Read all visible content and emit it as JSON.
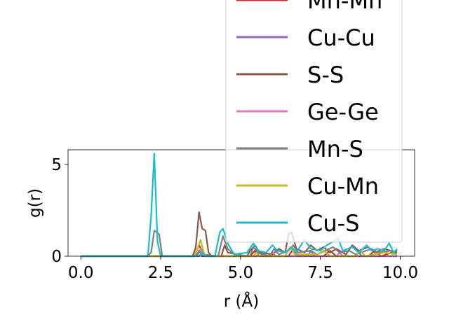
{
  "chart_data": {
    "type": "line",
    "xlabel": "r (Å)",
    "ylabel": "g(r)",
    "xlim": [
      -0.4,
      10.45
    ],
    "ylim": [
      0,
      5.8
    ],
    "x_ticks": [
      0.0,
      2.5,
      5.0,
      7.5,
      10.0
    ],
    "x_tick_labels": [
      "0.0",
      "2.5",
      "5.0",
      "7.5",
      "10.0"
    ],
    "y_ticks": [
      0,
      5
    ],
    "y_tick_labels": [
      "0",
      "5"
    ],
    "legend_position": "upper-right, overflowing the top of the axes",
    "series": [
      {
        "name": "Mn-Mn",
        "color": "#d62728",
        "points": [
          [
            0,
            0
          ],
          [
            3.55,
            0
          ],
          [
            3.7,
            0.6
          ],
          [
            3.85,
            0.1
          ],
          [
            4.0,
            0
          ],
          [
            5.3,
            0
          ],
          [
            5.45,
            0.3
          ],
          [
            5.6,
            0
          ],
          [
            6.5,
            0
          ],
          [
            6.65,
            0.4
          ],
          [
            6.8,
            0
          ],
          [
            7.6,
            0
          ],
          [
            7.8,
            0.3
          ],
          [
            8.0,
            0
          ],
          [
            9.0,
            0
          ],
          [
            9.2,
            0.3
          ],
          [
            9.4,
            0
          ],
          [
            9.9,
            0.3
          ]
        ]
      },
      {
        "name": "Cu-Cu",
        "color": "#9467bd",
        "points": [
          [
            0,
            0
          ],
          [
            3.6,
            0
          ],
          [
            3.7,
            0.3
          ],
          [
            3.8,
            0
          ],
          [
            5.5,
            0
          ],
          [
            5.6,
            0.2
          ],
          [
            5.7,
            0
          ],
          [
            7.1,
            0
          ],
          [
            7.2,
            0.3
          ],
          [
            7.3,
            0
          ],
          [
            8.6,
            0
          ],
          [
            8.7,
            0.2
          ],
          [
            8.8,
            0
          ],
          [
            9.9,
            0
          ]
        ]
      },
      {
        "name": "S-S",
        "color": "#8c564b",
        "points": [
          [
            0,
            0
          ],
          [
            3.5,
            0
          ],
          [
            3.6,
            0.5
          ],
          [
            3.7,
            2.4
          ],
          [
            3.8,
            1.5
          ],
          [
            3.9,
            1.4
          ],
          [
            4.0,
            0.2
          ],
          [
            4.1,
            0
          ],
          [
            4.4,
            0
          ],
          [
            4.5,
            0.6
          ],
          [
            4.6,
            0.2
          ],
          [
            5.2,
            0
          ],
          [
            5.3,
            0.3
          ],
          [
            5.45,
            0.6
          ],
          [
            5.6,
            0.2
          ],
          [
            6.0,
            0.1
          ],
          [
            6.2,
            0.4
          ],
          [
            6.4,
            0.2
          ],
          [
            6.5,
            1.2
          ],
          [
            6.6,
            1.3
          ],
          [
            6.75,
            0.4
          ],
          [
            7.0,
            0.2
          ],
          [
            7.2,
            0.6
          ],
          [
            7.4,
            0.3
          ],
          [
            7.6,
            0.5
          ],
          [
            7.8,
            0.2
          ],
          [
            8.0,
            0.4
          ],
          [
            8.3,
            0.1
          ],
          [
            8.5,
            0.6
          ],
          [
            8.7,
            0.3
          ],
          [
            9.0,
            0.5
          ],
          [
            9.2,
            0.2
          ],
          [
            9.5,
            0.4
          ],
          [
            9.7,
            0.3
          ],
          [
            9.9,
            0.2
          ]
        ]
      },
      {
        "name": "Ge-Ge",
        "color": "#e377c2",
        "points": [
          [
            0,
            0
          ],
          [
            3.65,
            0
          ],
          [
            3.75,
            0.4
          ],
          [
            3.85,
            0
          ],
          [
            5.9,
            0
          ],
          [
            6.0,
            0.2
          ],
          [
            6.1,
            0
          ],
          [
            8.0,
            0
          ],
          [
            8.1,
            0.2
          ],
          [
            8.2,
            0
          ],
          [
            9.9,
            0
          ]
        ]
      },
      {
        "name": "Mn-S",
        "color": "#7f7f7f",
        "points": [
          [
            0,
            0
          ],
          [
            2.1,
            0
          ],
          [
            2.2,
            0.2
          ],
          [
            2.3,
            1.4
          ],
          [
            2.45,
            1.2
          ],
          [
            2.55,
            0
          ],
          [
            3.6,
            0
          ],
          [
            3.7,
            0.3
          ],
          [
            3.8,
            0.1
          ],
          [
            4.3,
            0
          ],
          [
            4.45,
            1.1
          ],
          [
            4.6,
            0.4
          ],
          [
            4.8,
            0.1
          ],
          [
            5.3,
            0
          ],
          [
            5.4,
            0.5
          ],
          [
            5.55,
            0.2
          ],
          [
            5.9,
            0
          ],
          [
            6.05,
            0.4
          ],
          [
            6.2,
            0.1
          ],
          [
            6.5,
            0.3
          ],
          [
            6.65,
            0.6
          ],
          [
            6.8,
            0.2
          ],
          [
            7.2,
            0.3
          ],
          [
            7.4,
            0.1
          ],
          [
            7.9,
            0.5
          ],
          [
            8.1,
            0.2
          ],
          [
            8.4,
            0.3
          ],
          [
            8.6,
            0.1
          ],
          [
            9.1,
            0.4
          ],
          [
            9.3,
            0.2
          ],
          [
            9.7,
            0.3
          ],
          [
            9.9,
            0.1
          ]
        ]
      },
      {
        "name": "Cu-Mn",
        "color": "#bcbd22",
        "points": [
          [
            0,
            0
          ],
          [
            3.55,
            0
          ],
          [
            3.65,
            0.4
          ],
          [
            3.75,
            0.9
          ],
          [
            3.85,
            0.2
          ],
          [
            3.95,
            0
          ],
          [
            5.4,
            0
          ],
          [
            5.5,
            0.2
          ],
          [
            5.6,
            0
          ],
          [
            6.4,
            0
          ],
          [
            6.55,
            0.5
          ],
          [
            6.7,
            0.1
          ],
          [
            7.4,
            0.1
          ],
          [
            7.6,
            0.3
          ],
          [
            7.8,
            0
          ],
          [
            8.6,
            0
          ],
          [
            8.75,
            0.3
          ],
          [
            8.9,
            0
          ],
          [
            9.5,
            0.2
          ],
          [
            9.9,
            0.1
          ]
        ]
      },
      {
        "name": "Cu-S",
        "color": "#17becf",
        "points": [
          [
            0,
            0
          ],
          [
            2.1,
            0
          ],
          [
            2.2,
            2.2
          ],
          [
            2.3,
            5.6
          ],
          [
            2.4,
            0.8
          ],
          [
            2.5,
            0
          ],
          [
            3.7,
            0
          ],
          [
            3.8,
            0.2
          ],
          [
            3.9,
            0
          ],
          [
            4.2,
            0
          ],
          [
            4.35,
            1.3
          ],
          [
            4.45,
            1.5
          ],
          [
            4.6,
            0.7
          ],
          [
            4.8,
            0.1
          ],
          [
            5.2,
            0.2
          ],
          [
            5.4,
            0.7
          ],
          [
            5.55,
            0.3
          ],
          [
            5.8,
            0.2
          ],
          [
            6.0,
            0.6
          ],
          [
            6.15,
            0.3
          ],
          [
            6.4,
            0.2
          ],
          [
            6.6,
            0.5
          ],
          [
            6.75,
            0.2
          ],
          [
            7.0,
            0.9
          ],
          [
            7.2,
            0.4
          ],
          [
            7.5,
            0.3
          ],
          [
            7.7,
            0.6
          ],
          [
            7.9,
            0.8
          ],
          [
            8.05,
            1.0
          ],
          [
            8.2,
            0.3
          ],
          [
            8.5,
            0.5
          ],
          [
            8.7,
            0.2
          ],
          [
            8.95,
            0.6
          ],
          [
            9.1,
            0.3
          ],
          [
            9.3,
            0.4
          ],
          [
            9.5,
            0.3
          ],
          [
            9.65,
            0.7
          ],
          [
            9.8,
            0.2
          ],
          [
            9.9,
            0.4
          ]
        ]
      }
    ]
  }
}
